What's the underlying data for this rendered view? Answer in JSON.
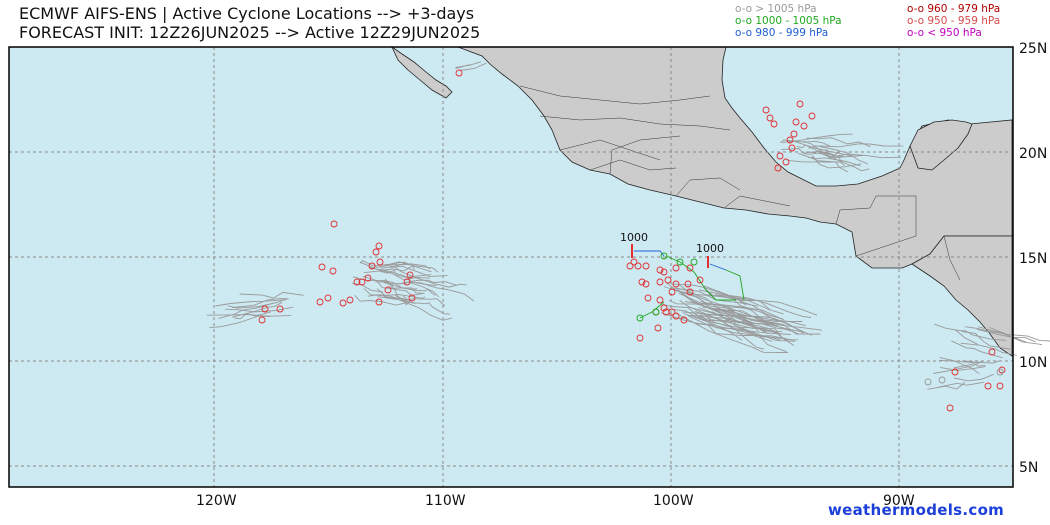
{
  "header": {
    "title_line1": "ECMWF AIFS-ENS | Active Cyclone Locations --> +3-days",
    "title_line2": "FORECAST INIT: 12Z26JUN2025 --> Active 12Z29JUN2025"
  },
  "legend": [
    {
      "label": "o-o > 1005 hPa",
      "color": "#9a9a9a"
    },
    {
      "label": "o-o 1000 - 1005 hPa",
      "color": "#1fa81f"
    },
    {
      "label": "o-o 980 - 999 hPa",
      "color": "#1f5fd6"
    },
    {
      "label": "o-o 960 - 979 hPa",
      "color": "#b00000"
    },
    {
      "label": "o-o 950 - 959 hPa",
      "color": "#d64b4b"
    },
    {
      "label": "o-o < 950 hPa",
      "color": "#c000c0"
    }
  ],
  "axes": {
    "lat_labels": [
      "25N",
      "20N",
      "15N",
      "10N",
      "5N"
    ],
    "lon_labels": [
      "120W",
      "110W",
      "100W",
      "90W"
    ]
  },
  "annotations": {
    "pressure_a": "1000",
    "pressure_b": "1000"
  },
  "colors": {
    "ocean": "#cde9f2",
    "land": "#cccccc",
    "grid": "#8a8a8a",
    "track": "#9a9a9a",
    "low_marker": "#e03030"
  },
  "credit": "weathermodels.com"
}
